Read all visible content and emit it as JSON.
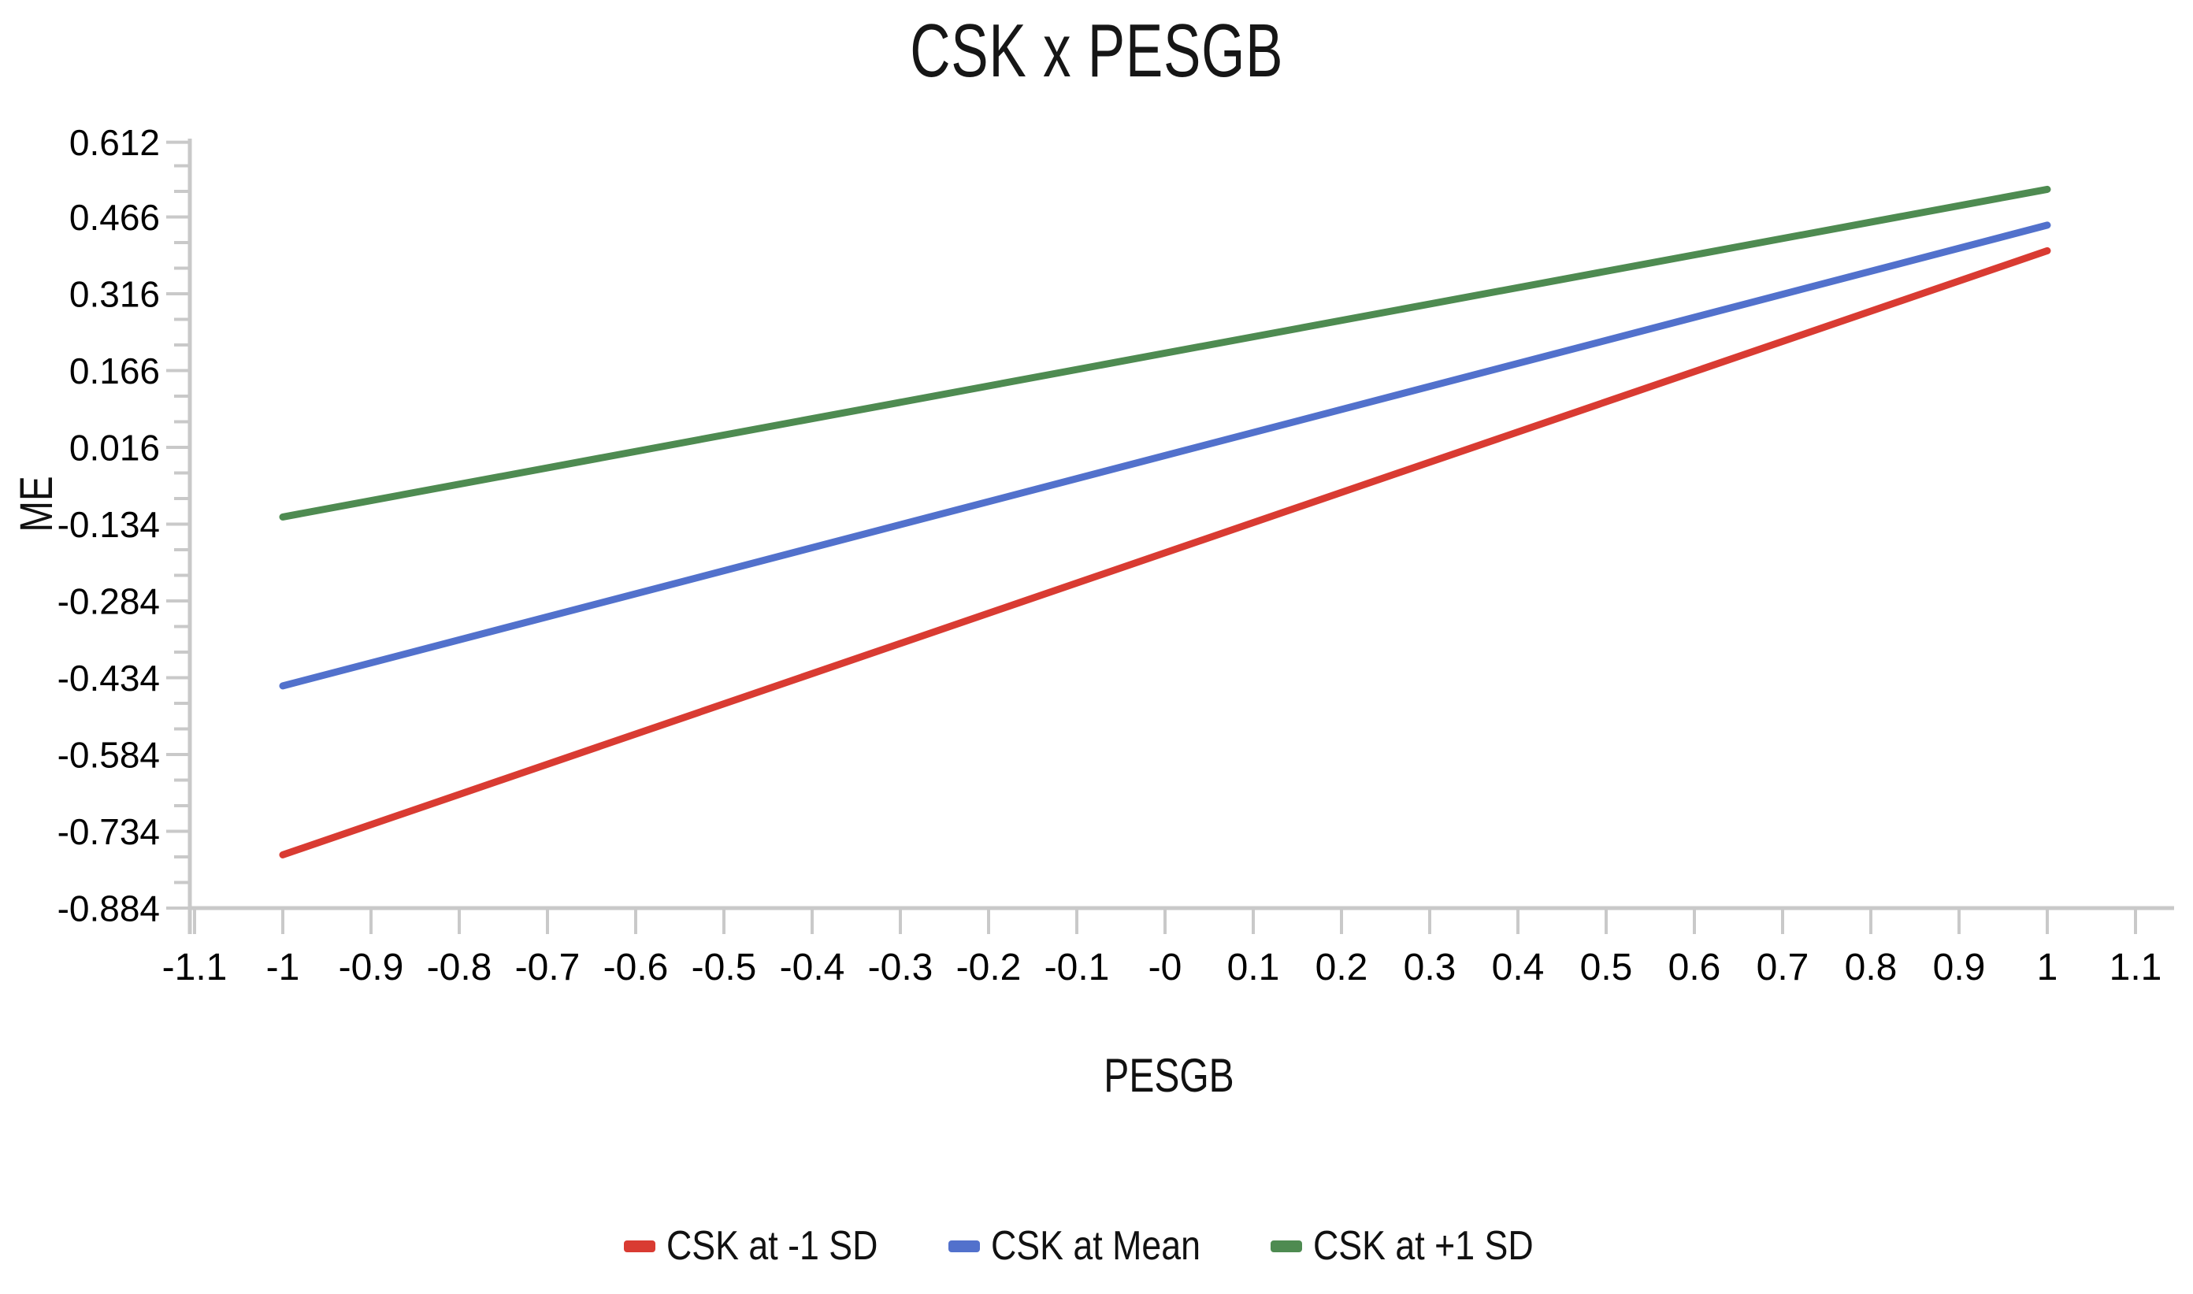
{
  "title": "CSK x PESGB",
  "y_axis": {
    "title": "ME",
    "tick_labels": [
      "0.612",
      "0.466",
      "0.316",
      "0.166",
      "0.016",
      "-0.134",
      "-0.284",
      "-0.434",
      "-0.584",
      "-0.734",
      "-0.884"
    ]
  },
  "x_axis": {
    "title": "PESGB",
    "tick_labels": [
      "-1.1",
      "-1",
      "-0.9",
      "-0.8",
      "-0.7",
      "-0.6",
      "-0.5",
      "-0.4",
      "-0.3",
      "-0.2",
      "-0.1",
      "-0",
      "0.1",
      "0.2",
      "0.3",
      "0.4",
      "0.5",
      "0.6",
      "0.7",
      "0.8",
      "0.9",
      "1",
      "1.1"
    ]
  },
  "legend": {
    "items": [
      {
        "label": "CSK at -1 SD",
        "color": "#d93b32"
      },
      {
        "label": "CSK at Mean",
        "color": "#5271cc"
      },
      {
        "label": "CSK at +1 SD",
        "color": "#4e8b51"
      }
    ]
  },
  "colors": {
    "axis": "#c9c9c9",
    "text": "#000000",
    "background": "#ffffff",
    "red_line": "#d93b32",
    "blue_line": "#5271cc",
    "green_line": "#4e8b51"
  },
  "chart_data": {
    "type": "line",
    "title": "CSK x PESGB",
    "xlabel": "PESGB",
    "ylabel": "ME",
    "x": [
      -1,
      1
    ],
    "series": [
      {
        "name": "CSK at -1 SD",
        "color": "#d93b32",
        "values": [
          -0.78,
          0.4
        ]
      },
      {
        "name": "CSK at Mean",
        "color": "#5271cc",
        "values": [
          -0.45,
          0.45
        ]
      },
      {
        "name": "CSK at +1 SD",
        "color": "#4e8b51",
        "values": [
          -0.12,
          0.52
        ]
      }
    ],
    "xlim": [
      -1.1,
      1.1
    ],
    "ylim": [
      -0.884,
      0.612
    ],
    "x_tick_step": 0.1,
    "y_major_step": 0.15,
    "y_minor_step": 0.05,
    "grid": false,
    "legend_position": "bottom"
  }
}
